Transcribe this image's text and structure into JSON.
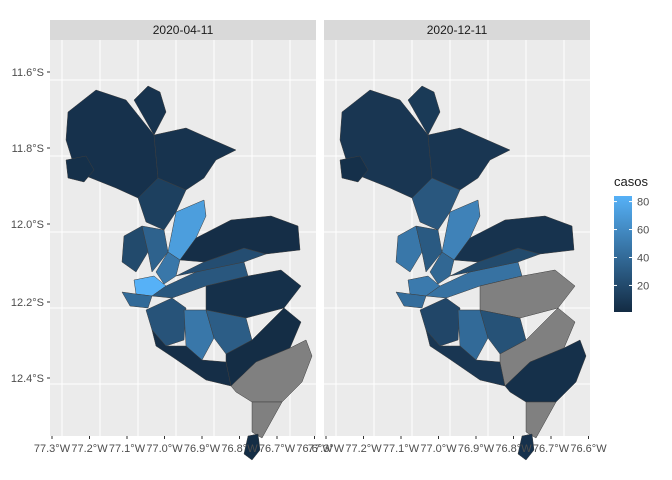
{
  "chart_data": {
    "type": "choropleth",
    "facets": [
      {
        "label": "2020-04-11",
        "regions": [
          {
            "name": "north-large",
            "casos": 5
          },
          {
            "name": "north-top",
            "casos": 6
          },
          {
            "name": "northeast-arm",
            "casos": 6
          },
          {
            "name": "coast-west",
            "casos": 4
          },
          {
            "name": "center-north",
            "casos": 14
          },
          {
            "name": "center-bright-band",
            "casos": 72
          },
          {
            "name": "center-west-a",
            "casos": 20
          },
          {
            "name": "center-west-b",
            "casos": 35
          },
          {
            "name": "center-west-c",
            "casos": 48
          },
          {
            "name": "center-core",
            "casos": 84
          },
          {
            "name": "center-core-b",
            "casos": 40
          },
          {
            "name": "mid-band",
            "casos": 28
          },
          {
            "name": "mid-band-b",
            "casos": 22
          },
          {
            "name": "east-large",
            "casos": 3
          },
          {
            "name": "east-mid",
            "casos": 4
          },
          {
            "name": "south-center-a",
            "casos": 26
          },
          {
            "name": "south-center-b",
            "casos": 48
          },
          {
            "name": "south-center-c",
            "casos": 32
          },
          {
            "name": "south-coast",
            "casos": 3
          },
          {
            "name": "south-inland",
            "casos": 2
          },
          {
            "name": "southeast-wedge",
            "casos": null
          },
          {
            "name": "south-tip",
            "casos": null
          },
          {
            "name": "island",
            "casos": 2
          }
        ]
      },
      {
        "label": "2020-12-11",
        "regions": [
          {
            "name": "north-large",
            "casos": 8
          },
          {
            "name": "north-top",
            "casos": 10
          },
          {
            "name": "northeast-arm",
            "casos": 8
          },
          {
            "name": "coast-west",
            "casos": 4
          },
          {
            "name": "center-north",
            "casos": 28
          },
          {
            "name": "center-bright-band",
            "casos": 55
          },
          {
            "name": "center-west-a",
            "casos": 48
          },
          {
            "name": "center-west-b",
            "casos": 30
          },
          {
            "name": "center-west-c",
            "casos": 38
          },
          {
            "name": "center-core",
            "casos": 50
          },
          {
            "name": "center-core-b",
            "casos": 42
          },
          {
            "name": "mid-band",
            "casos": 45
          },
          {
            "name": "mid-band-b",
            "casos": 20
          },
          {
            "name": "east-large",
            "casos": 6
          },
          {
            "name": "east-mid",
            "casos": null
          },
          {
            "name": "south-center-a",
            "casos": 18
          },
          {
            "name": "south-center-b",
            "casos": 40
          },
          {
            "name": "south-center-c",
            "casos": 25
          },
          {
            "name": "south-coast",
            "casos": 8
          },
          {
            "name": "south-inland",
            "casos": null
          },
          {
            "name": "southeast-wedge",
            "casos": 4
          },
          {
            "name": "south-tip",
            "casos": null
          },
          {
            "name": "island",
            "casos": 5
          }
        ]
      }
    ],
    "x_ticks": [
      "77.3°W",
      "77.2°W",
      "77.1°W",
      "77.0°W",
      "76.9°W",
      "76.8°W",
      "76.7°W",
      "76.6°W"
    ],
    "y_ticks": [
      "11.6°S",
      "11.8°S",
      "12.0°S",
      "12.2°S",
      "12.4°S"
    ],
    "legend": {
      "title": "casos",
      "range": [
        1,
        84
      ],
      "breaks": [
        20,
        40,
        60,
        80
      ],
      "low_color": "#132B43",
      "high_color": "#56B1F7",
      "na_color": "#808080"
    },
    "grid": true
  },
  "colors": {
    "panel_bg": "#EBEBEB",
    "grid_major": "#FFFFFF",
    "strip_bg": "#D9D9D9",
    "border": "#3d3d3d"
  }
}
